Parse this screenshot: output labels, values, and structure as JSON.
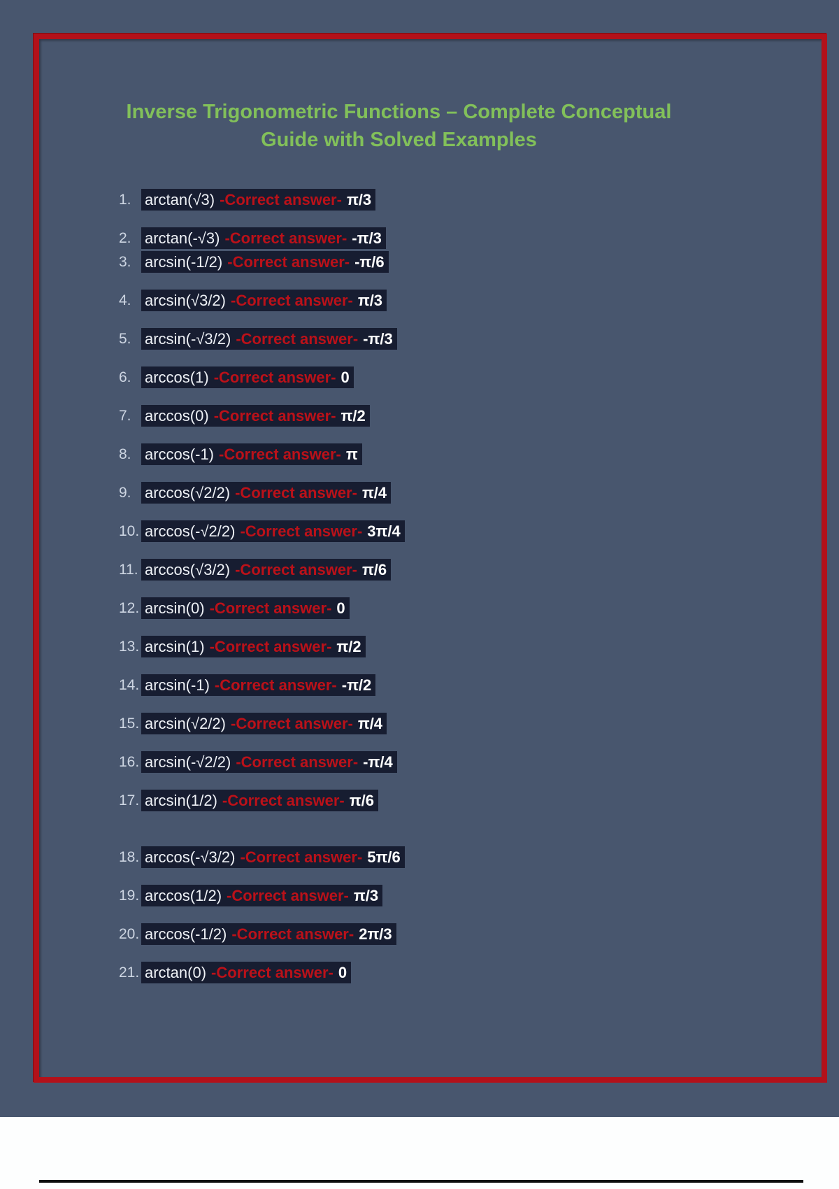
{
  "page": {
    "title_lines": [
      "Inverse Trigonometric Functions – Complete Conceptual",
      "Guide with Solved Examples"
    ]
  },
  "worksheet": {
    "answer_label": "-Correct answer-",
    "items": [
      {
        "num": "1.",
        "question": "arctan(√3)",
        "answer": "π/3"
      },
      {
        "num": "2.",
        "question": "arctan(-√3)",
        "answer": "-π/3"
      },
      {
        "num": "3.",
        "question": "arcsin(-1/2)",
        "answer": "-π/6"
      },
      {
        "num": "4.",
        "question": "arcsin(√3/2)",
        "answer": "π/3"
      },
      {
        "num": "5.",
        "question": "arcsin(-√3/2)",
        "answer": "-π/3"
      },
      {
        "num": "6.",
        "question": "arccos(1)",
        "answer": "0"
      },
      {
        "num": "7.",
        "question": "arccos(0)",
        "answer": "π/2"
      },
      {
        "num": "8.",
        "question": "arccos(-1)",
        "answer": "π"
      },
      {
        "num": "9.",
        "question": "arccos(√2/2)",
        "answer": "π/4"
      },
      {
        "num": "10.",
        "question": "arccos(-√2/2)",
        "answer": "3π/4"
      },
      {
        "num": "11.",
        "question": "arccos(√3/2)",
        "answer": "π/6"
      },
      {
        "num": "12.",
        "question": "arcsin(0)",
        "answer": "0"
      },
      {
        "num": "13.",
        "question": "arcsin(1)",
        "answer": "π/2"
      },
      {
        "num": "14.",
        "question": "arcsin(-1)",
        "answer": "-π/2"
      },
      {
        "num": "15.",
        "question": "arcsin(√2/2)",
        "answer": "π/4"
      },
      {
        "num": "16.",
        "question": "arcsin(-√2/2)",
        "answer": "-π/4"
      },
      {
        "num": "17.",
        "question": "arcsin(1/2)",
        "answer": "π/6"
      },
      {
        "num": "18.",
        "question": "arccos(-√3/2)",
        "answer": "5π/6"
      },
      {
        "num": "19.",
        "question": "arccos(1/2)",
        "answer": "π/3"
      },
      {
        "num": "20.",
        "question": "arccos(-1/2)",
        "answer": "2π/3"
      },
      {
        "num": "21.",
        "question": "arctan(0)",
        "answer": "0"
      }
    ]
  },
  "colors": {
    "page_background": "#48566e",
    "frame_red": "#b3111a",
    "title_green": "#82c05a",
    "highlight_navy": "#171d31",
    "answer_label_red": "#bb1119",
    "bottom_strip_white": "#fdfefe",
    "bottom_rule_black": "#0d0d0d"
  }
}
